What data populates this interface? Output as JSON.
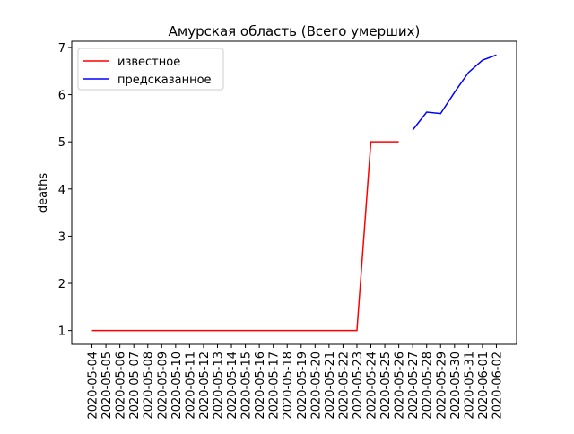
{
  "chart_data": {
    "type": "line",
    "title": "Амурская область (Всего умерших)",
    "y_label": "deaths",
    "categories": [
      "2020-05-04",
      "2020-05-05",
      "2020-05-06",
      "2020-05-07",
      "2020-05-08",
      "2020-05-09",
      "2020-05-10",
      "2020-05-11",
      "2020-05-12",
      "2020-05-13",
      "2020-05-14",
      "2020-05-15",
      "2020-05-16",
      "2020-05-17",
      "2020-05-18",
      "2020-05-19",
      "2020-05-20",
      "2020-05-21",
      "2020-05-22",
      "2020-05-23",
      "2020-05-24",
      "2020-05-25",
      "2020-05-26",
      "2020-05-27",
      "2020-05-28",
      "2020-05-29",
      "2020-05-30",
      "2020-05-31",
      "2020-06-01",
      "2020-06-02"
    ],
    "series": [
      {
        "name": "известное",
        "color": "#ff0000",
        "values": [
          1,
          1,
          1,
          1,
          1,
          1,
          1,
          1,
          1,
          1,
          1,
          1,
          1,
          1,
          1,
          1,
          1,
          1,
          1,
          1,
          5,
          5,
          5,
          null,
          null,
          null,
          null,
          null,
          null,
          null
        ]
      },
      {
        "name": "предсказанное",
        "color": "#0000ff",
        "values": [
          null,
          null,
          null,
          null,
          null,
          null,
          null,
          null,
          null,
          null,
          null,
          null,
          null,
          null,
          null,
          null,
          null,
          null,
          null,
          null,
          null,
          null,
          null,
          5.25,
          5.63,
          5.6,
          6.05,
          6.47,
          6.73,
          6.84
        ]
      }
    ],
    "ylim": [
      0.708,
      7.132
    ],
    "yticks": [
      1,
      2,
      3,
      4,
      5,
      6,
      7
    ],
    "legend": "upper left"
  }
}
